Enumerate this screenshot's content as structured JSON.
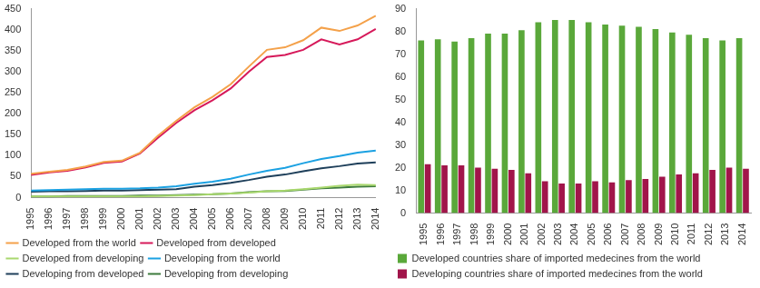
{
  "chart_data": [
    {
      "type": "line",
      "categories": [
        "1995",
        "1996",
        "1997",
        "1998",
        "1999",
        "2000",
        "2001",
        "2002",
        "2003",
        "2004",
        "2005",
        "2006",
        "2007",
        "2008",
        "2009",
        "2010",
        "2011",
        "2012",
        "2013",
        "2014"
      ],
      "series": [
        {
          "name": "Developed from the world",
          "color": "#f4a14a",
          "values": [
            57,
            62,
            66,
            74,
            85,
            88,
            107,
            148,
            183,
            215,
            240,
            270,
            312,
            352,
            358,
            375,
            405,
            397,
            410,
            433
          ]
        },
        {
          "name": "Developed from developed",
          "color": "#d6195a",
          "values": [
            54,
            60,
            64,
            72,
            83,
            86,
            105,
            143,
            178,
            208,
            232,
            260,
            300,
            335,
            340,
            352,
            377,
            365,
            377,
            402
          ]
        },
        {
          "name": "Developed from developing",
          "color": "#a9d86e",
          "values": [
            3,
            3,
            3,
            3,
            3,
            3,
            3,
            4,
            5,
            6,
            8,
            10,
            12,
            15,
            17,
            20,
            24,
            28,
            31,
            30
          ]
        },
        {
          "name": "Developing from the world",
          "color": "#1ba1e2",
          "values": [
            17,
            18,
            19,
            20,
            21,
            21,
            22,
            24,
            27,
            33,
            38,
            45,
            55,
            64,
            71,
            82,
            92,
            99,
            107,
            112
          ]
        },
        {
          "name": "Developing from developed",
          "color": "#1e3f5a",
          "values": [
            14,
            15,
            15,
            16,
            17,
            17,
            18,
            19,
            20,
            26,
            30,
            35,
            42,
            50,
            55,
            63,
            70,
            75,
            81,
            84
          ]
        },
        {
          "name": "Developing from developing",
          "color": "#3d7a3d",
          "values": [
            3,
            3,
            4,
            4,
            4,
            4,
            5,
            5,
            6,
            7,
            8,
            10,
            13,
            15,
            16,
            19,
            22,
            24,
            26,
            27
          ]
        }
      ],
      "ylim": [
        0,
        450
      ],
      "yticks": [
        0,
        50,
        100,
        150,
        200,
        250,
        300,
        350,
        400,
        450
      ],
      "grid": false,
      "legend": "bottom"
    },
    {
      "type": "bar",
      "categories": [
        "1995",
        "1996",
        "1997",
        "1998",
        "1999",
        "2000",
        "2001",
        "2002",
        "2003",
        "2004",
        "2005",
        "2006",
        "2007",
        "2008",
        "2009",
        "2010",
        "2011",
        "2012",
        "2013",
        "2014"
      ],
      "series": [
        {
          "name": "Developed countries share of imported medecines from the world",
          "color": "#5aa83a",
          "values": [
            76,
            76.5,
            75.5,
            77,
            79,
            79,
            80.5,
            84,
            85,
            85,
            84,
            83,
            82.5,
            82,
            81,
            79.5,
            78.5,
            77,
            76,
            77
          ]
        },
        {
          "name": "Developing countries share of imported medecines from the world",
          "color": "#a1154a",
          "values": [
            21.5,
            21,
            21,
            20,
            19.5,
            19,
            17.5,
            14,
            13,
            13,
            14,
            13.5,
            14.5,
            15,
            16,
            17,
            17.5,
            19,
            20,
            19.5
          ]
        }
      ],
      "ylim": [
        0,
        90
      ],
      "yticks": [
        0,
        10,
        20,
        30,
        40,
        50,
        60,
        70,
        80,
        90
      ],
      "grid": false,
      "legend": "bottom"
    }
  ]
}
